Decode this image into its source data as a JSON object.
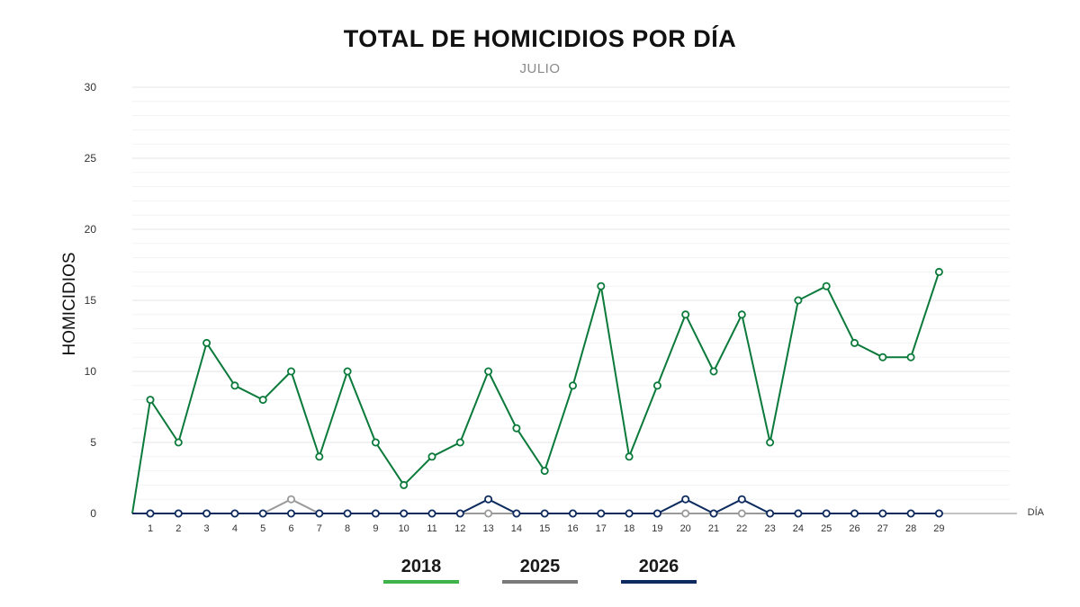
{
  "chart_data": {
    "type": "line",
    "title": "TOTAL DE HOMICIDIOS POR DÍA",
    "subtitle": "JULIO",
    "xlabel": "DÍA",
    "ylabel": "HOMICIDIOS",
    "ylim": [
      0,
      30
    ],
    "yticks": [
      0,
      5,
      10,
      15,
      20,
      25,
      30
    ],
    "grid": true,
    "legend_position": "bottom",
    "categories": [
      1,
      2,
      3,
      4,
      5,
      6,
      7,
      8,
      9,
      10,
      11,
      12,
      13,
      14,
      15,
      16,
      17,
      18,
      19,
      20,
      21,
      22,
      23,
      24,
      25,
      26,
      27,
      28,
      29
    ],
    "series": [
      {
        "name": "2018",
        "color": "#0b7a3b",
        "legend_color": "#3db34a",
        "values": [
          8,
          5,
          12,
          9,
          8,
          10,
          4,
          10,
          5,
          2,
          4,
          5,
          10,
          6,
          3,
          9,
          16,
          4,
          9,
          14,
          10,
          14,
          5,
          15,
          16,
          12,
          11,
          11,
          17
        ]
      },
      {
        "name": "2025",
        "color": "#9a9a9a",
        "legend_color": "#7a7a7a",
        "values": [
          0,
          0,
          0,
          0,
          0,
          1,
          0,
          0,
          0,
          0,
          0,
          0,
          0,
          0,
          0,
          0,
          0,
          0,
          0,
          0,
          0,
          0,
          0,
          0,
          0,
          0,
          0,
          0,
          0
        ]
      },
      {
        "name": "2026",
        "color": "#0d2b5e",
        "legend_color": "#0d2b5e",
        "values": [
          0,
          0,
          0,
          0,
          0,
          0,
          0,
          0,
          0,
          0,
          0,
          0,
          1,
          0,
          0,
          0,
          0,
          0,
          0,
          1,
          0,
          1,
          0,
          0,
          0,
          0,
          0,
          0,
          0
        ]
      }
    ]
  }
}
